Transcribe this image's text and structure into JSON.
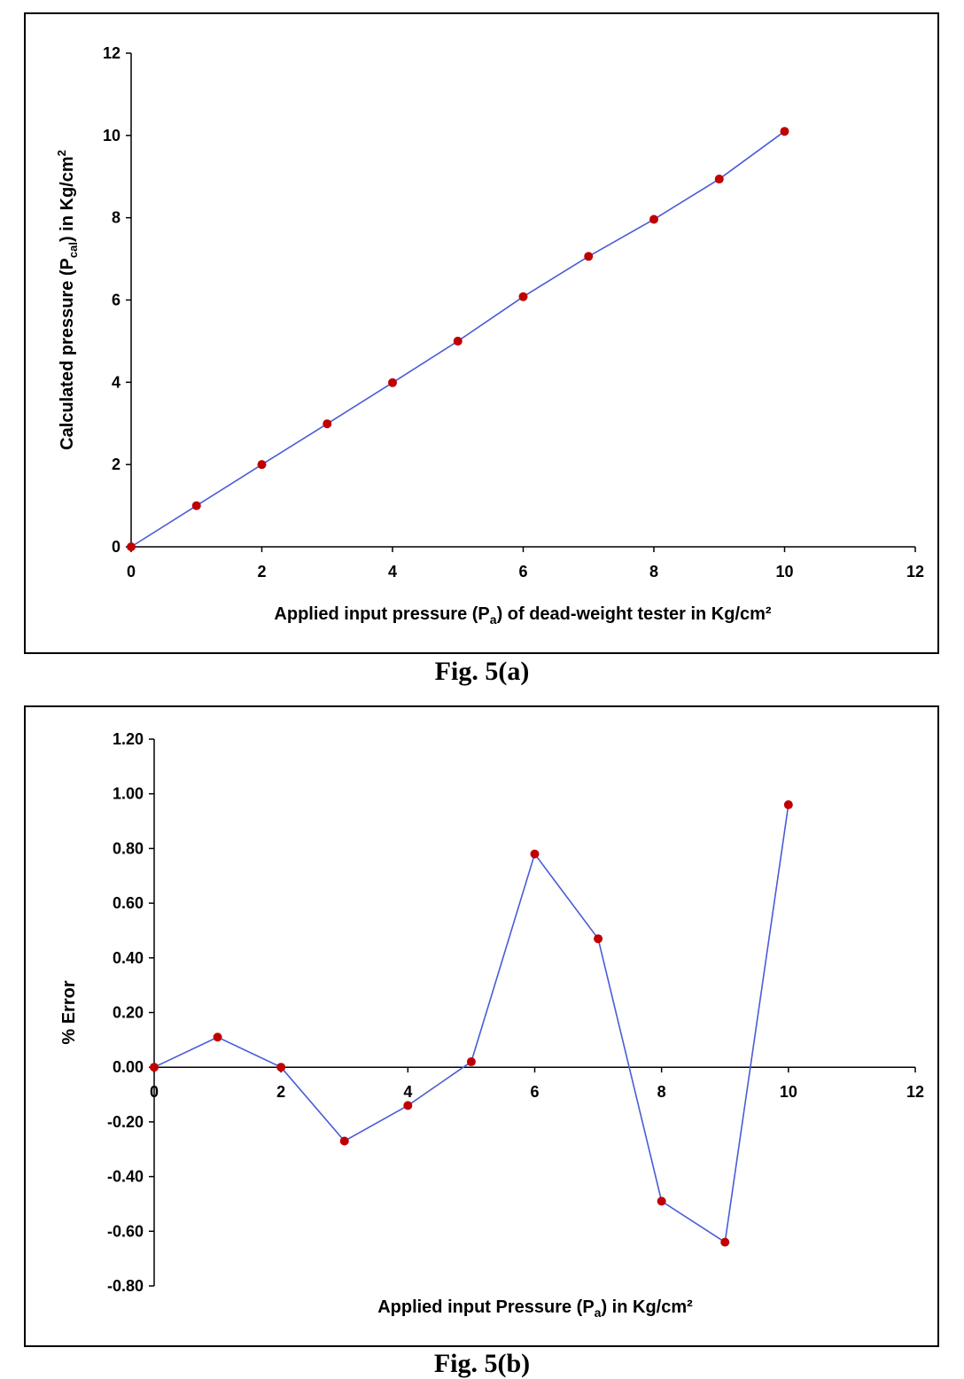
{
  "chart_data": [
    {
      "type": "line",
      "caption": "Fig. 5(a)",
      "xlabel": {
        "prefix": "Applied input pressure (P",
        "sub": "a",
        "suffix": ") of dead-weight tester in Kg/cm²"
      },
      "ylabel": {
        "prefix": "Calculated pressure (P",
        "sub": "cal",
        "suffix": ") in Kg/cm",
        "sup": "2"
      },
      "xlim": [
        0,
        12
      ],
      "ylim": [
        0,
        12
      ],
      "xticks": [
        "0",
        "2",
        "4",
        "6",
        "8",
        "10",
        "12"
      ],
      "yticks": [
        "0",
        "2",
        "4",
        "6",
        "8",
        "10",
        "12"
      ],
      "grid": false,
      "line_color": "#4a5bd8",
      "marker_color": "#c00000",
      "series": [
        {
          "x": [
            0,
            1,
            2,
            3,
            4,
            5,
            6,
            7,
            8,
            9,
            10
          ],
          "values": [
            0,
            1.0,
            2.0,
            2.99,
            3.99,
            5.0,
            6.08,
            7.06,
            7.96,
            8.94,
            10.1
          ]
        }
      ]
    },
    {
      "type": "line",
      "caption": "Fig. 5(b)",
      "xlabel": {
        "prefix": "Applied input Pressure (P",
        "sub": "a",
        "suffix": ")  in Kg/cm²"
      },
      "ylabel": {
        "prefix": "% Error",
        "sub": "",
        "suffix": "",
        "sup": ""
      },
      "xlim": [
        0,
        12
      ],
      "ylim": [
        -0.8,
        1.2
      ],
      "xticks": [
        "0",
        "2",
        "4",
        "6",
        "8",
        "10",
        "12"
      ],
      "yticks": [
        "-0.80",
        "-0.60",
        "-0.40",
        "-0.20",
        "0.00",
        "0.20",
        "0.40",
        "0.60",
        "0.80",
        "1.00",
        "1.20"
      ],
      "grid": false,
      "line_color": "#4a5bd8",
      "marker_color": "#c00000",
      "series": [
        {
          "x": [
            0,
            1,
            2,
            3,
            4,
            5,
            6,
            7,
            8,
            9,
            10
          ],
          "values": [
            0.0,
            0.11,
            0.0,
            -0.27,
            -0.14,
            0.02,
            0.78,
            0.47,
            -0.49,
            -0.64,
            0.96
          ]
        }
      ]
    }
  ]
}
